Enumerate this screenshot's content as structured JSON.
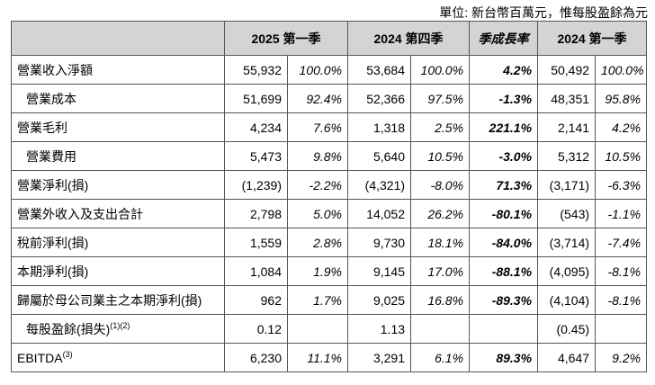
{
  "unit_note": "單位: 新台幣百萬元，惟每股盈餘為元",
  "headers": {
    "col1": "2025 第一季",
    "col2": "2024 第四季",
    "yoy": "季成長率",
    "col3": "2024 第一季"
  },
  "rows": [
    {
      "label": "營業收入淨額",
      "sup": "",
      "a": "55,932",
      "ap": "100.0%",
      "b": "53,684",
      "bp": "100.0%",
      "y": "4.2%",
      "c": "50,492",
      "cp": "100.0%"
    },
    {
      "label": "營業成本",
      "sup": "",
      "a": "51,699",
      "ap": "92.4%",
      "b": "52,366",
      "bp": "97.5%",
      "y": "-1.3%",
      "c": "48,351",
      "cp": "95.8%"
    },
    {
      "label": "營業毛利",
      "sup": "",
      "a": "4,234",
      "ap": "7.6%",
      "b": "1,318",
      "bp": "2.5%",
      "y": "221.1%",
      "c": "2,141",
      "cp": "4.2%"
    },
    {
      "label": "營業費用",
      "sup": "",
      "a": "5,473",
      "ap": "9.8%",
      "b": "5,640",
      "bp": "10.5%",
      "y": "-3.0%",
      "c": "5,312",
      "cp": "10.5%"
    },
    {
      "label": "營業淨利(損)",
      "sup": "",
      "a": "(1,239)",
      "ap": "-2.2%",
      "b": "(4,321)",
      "bp": "-8.0%",
      "y": "71.3%",
      "c": "(3,171)",
      "cp": "-6.3%"
    },
    {
      "label": "營業外收入及支出合計",
      "sup": "",
      "a": "2,798",
      "ap": "5.0%",
      "b": "14,052",
      "bp": "26.2%",
      "y": "-80.1%",
      "c": "(543)",
      "cp": "-1.1%"
    },
    {
      "label": "稅前淨利(損)",
      "sup": "",
      "a": "1,559",
      "ap": "2.8%",
      "b": "9,730",
      "bp": "18.1%",
      "y": "-84.0%",
      "c": "(3,714)",
      "cp": "-7.4%"
    },
    {
      "label": "本期淨利(損)",
      "sup": "",
      "a": "1,084",
      "ap": "1.9%",
      "b": "9,145",
      "bp": "17.0%",
      "y": "-88.1%",
      "c": "(4,095)",
      "cp": "-8.1%"
    },
    {
      "label": "歸屬於母公司業主之本期淨利(損)",
      "sup": "",
      "a": "962",
      "ap": "1.7%",
      "b": "9,025",
      "bp": "16.8%",
      "y": "-89.3%",
      "c": "(4,104)",
      "cp": "-8.1%"
    },
    {
      "label": "每股盈餘(損失)",
      "sup": "(1)(2)",
      "a": "0.12",
      "ap": "",
      "b": "1.13",
      "bp": "",
      "y": "",
      "c": "(0.45)",
      "cp": ""
    },
    {
      "label": "EBITDA",
      "sup": "(3)",
      "a": "6,230",
      "ap": "11.1%",
      "b": "3,291",
      "bp": "6.1%",
      "y": "89.3%",
      "c": "4,647",
      "cp": "9.2%"
    }
  ]
}
